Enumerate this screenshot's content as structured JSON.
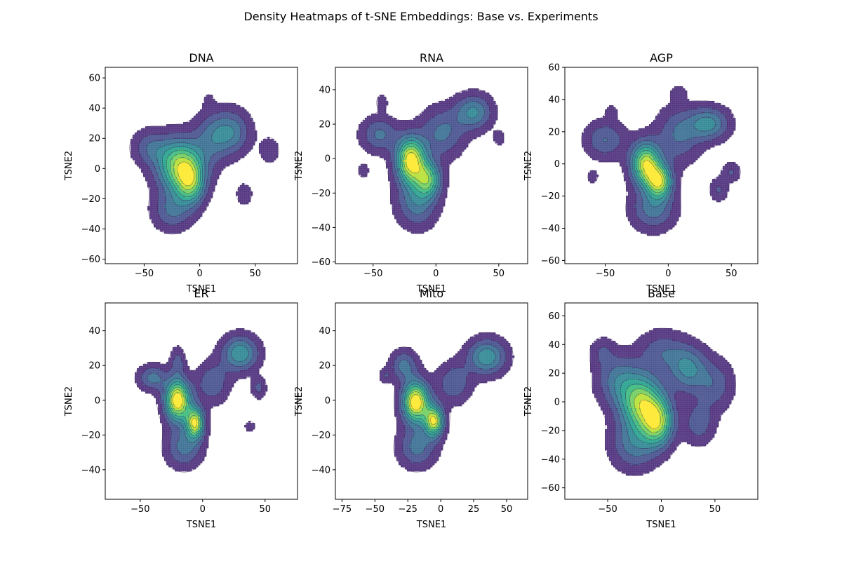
{
  "figure": {
    "title": "Density Heatmaps of t-SNE Embeddings: Base vs. Experiments"
  },
  "colors": {
    "levels": [
      "#482878",
      "#3f4a8a",
      "#31688e",
      "#26838f",
      "#1f9d8a",
      "#35b779",
      "#6cce59",
      "#b4de2c",
      "#fde725"
    ],
    "contour_line": "#2a1a3a",
    "axis": "#000000"
  },
  "chart_data": [
    {
      "type": "heatmap",
      "title": "DNA",
      "xlabel": "TSNE1",
      "ylabel": "TSNE2",
      "xlim": [
        -85,
        88
      ],
      "ylim": [
        -63,
        67
      ],
      "xticks": [
        -50,
        0,
        50
      ],
      "yticks": [
        -60,
        -40,
        -20,
        0,
        20,
        40,
        60
      ],
      "grid": false,
      "clusters": [
        {
          "x": -18,
          "y": 2,
          "sx": 14,
          "sy": 12,
          "w": 1.0
        },
        {
          "x": -8,
          "y": -10,
          "sx": 9,
          "sy": 10,
          "w": 0.7
        },
        {
          "x": 28,
          "y": 24,
          "sx": 12,
          "sy": 10,
          "w": 0.45
        },
        {
          "x": -45,
          "y": 14,
          "sx": 11,
          "sy": 8,
          "w": 0.3
        },
        {
          "x": -25,
          "y": -28,
          "sx": 12,
          "sy": 9,
          "w": 0.35
        },
        {
          "x": 40,
          "y": -17,
          "sx": 5,
          "sy": 5,
          "w": 0.2
        },
        {
          "x": 63,
          "y": 12,
          "sx": 6,
          "sy": 6,
          "w": 0.2
        },
        {
          "x": 10,
          "y": 20,
          "sx": 11,
          "sy": 12,
          "w": 0.3
        },
        {
          "x": 8,
          "y": 45,
          "sx": 3,
          "sy": 3,
          "w": 0.15
        }
      ]
    },
    {
      "type": "heatmap",
      "title": "RNA",
      "xlabel": "TSNE1",
      "ylabel": "TSNE2",
      "xlim": [
        -80,
        73
      ],
      "ylim": [
        -61,
        53
      ],
      "xticks": [
        -50,
        0,
        50
      ],
      "yticks": [
        -60,
        -40,
        -20,
        0,
        20,
        40
      ],
      "grid": false,
      "clusters": [
        {
          "x": -20,
          "y": -1,
          "sx": 8,
          "sy": 9,
          "w": 1.0
        },
        {
          "x": -6,
          "y": -12,
          "sx": 7,
          "sy": 7,
          "w": 0.6
        },
        {
          "x": 30,
          "y": 27,
          "sx": 10,
          "sy": 7,
          "w": 0.4
        },
        {
          "x": -45,
          "y": 14,
          "sx": 10,
          "sy": 7,
          "w": 0.3
        },
        {
          "x": -15,
          "y": -25,
          "sx": 11,
          "sy": 10,
          "w": 0.35
        },
        {
          "x": -43,
          "y": 33,
          "sx": 3,
          "sy": 3,
          "w": 0.15
        },
        {
          "x": -58,
          "y": -7,
          "sx": 3,
          "sy": 3,
          "w": 0.15
        },
        {
          "x": 5,
          "y": 15,
          "sx": 12,
          "sy": 10,
          "w": 0.3
        },
        {
          "x": 50,
          "y": 12,
          "sx": 3,
          "sy": 3,
          "w": 0.15
        }
      ]
    },
    {
      "type": "heatmap",
      "title": "AGP",
      "xlabel": "TSNE1",
      "ylabel": "TSNE2",
      "xlim": [
        -82,
        71
      ],
      "ylim": [
        -62,
        60
      ],
      "xticks": [
        -50,
        0,
        50
      ],
      "yticks": [
        -60,
        -40,
        -20,
        0,
        20,
        40,
        60
      ],
      "grid": false,
      "clusters": [
        {
          "x": -18,
          "y": 0,
          "sx": 8,
          "sy": 9,
          "w": 0.95
        },
        {
          "x": -7,
          "y": -11,
          "sx": 7,
          "sy": 7,
          "w": 0.85
        },
        {
          "x": 32,
          "y": 25,
          "sx": 11,
          "sy": 7,
          "w": 0.45
        },
        {
          "x": -50,
          "y": 15,
          "sx": 11,
          "sy": 8,
          "w": 0.3
        },
        {
          "x": -12,
          "y": -28,
          "sx": 12,
          "sy": 9,
          "w": 0.35
        },
        {
          "x": -45,
          "y": 32,
          "sx": 3,
          "sy": 3,
          "w": 0.15
        },
        {
          "x": -60,
          "y": -8,
          "sx": 3,
          "sy": 3,
          "w": 0.15
        },
        {
          "x": 8,
          "y": 44,
          "sx": 4,
          "sy": 3,
          "w": 0.15
        },
        {
          "x": 40,
          "y": -16,
          "sx": 5,
          "sy": 5,
          "w": 0.2
        },
        {
          "x": 50,
          "y": -5,
          "sx": 5,
          "sy": 4,
          "w": 0.2
        },
        {
          "x": 8,
          "y": 18,
          "sx": 12,
          "sy": 12,
          "w": 0.3
        }
      ]
    },
    {
      "type": "heatmap",
      "title": "ER",
      "xlabel": "TSNE1",
      "ylabel": "TSNE2",
      "xlim": [
        -78,
        76
      ],
      "ylim": [
        -57,
        56
      ],
      "xticks": [
        -50,
        0,
        50
      ],
      "yticks": [
        -40,
        -20,
        0,
        20,
        40
      ],
      "grid": false,
      "clusters": [
        {
          "x": -20,
          "y": 0,
          "sx": 7,
          "sy": 8,
          "w": 1.0
        },
        {
          "x": -6,
          "y": -13,
          "sx": 5,
          "sy": 6,
          "w": 0.85
        },
        {
          "x": 30,
          "y": 27,
          "sx": 10,
          "sy": 7,
          "w": 0.45
        },
        {
          "x": -40,
          "y": 13,
          "sx": 8,
          "sy": 5,
          "w": 0.3
        },
        {
          "x": -15,
          "y": -27,
          "sx": 10,
          "sy": 8,
          "w": 0.3
        },
        {
          "x": 45,
          "y": 7,
          "sx": 4,
          "sy": 4,
          "w": 0.2
        },
        {
          "x": 38,
          "y": -15,
          "sx": 3,
          "sy": 2,
          "w": 0.15
        },
        {
          "x": -20,
          "y": 22,
          "sx": 4,
          "sy": 6,
          "w": 0.2
        },
        {
          "x": 8,
          "y": 10,
          "sx": 9,
          "sy": 8,
          "w": 0.25
        }
      ]
    },
    {
      "type": "heatmap",
      "title": "Mito",
      "xlabel": "TSNE1",
      "ylabel": "TSNE2",
      "xlim": [
        -80,
        66
      ],
      "ylim": [
        -57,
        56
      ],
      "xticks": [
        -75,
        -50,
        -25,
        0,
        25,
        50
      ],
      "yticks": [
        -40,
        -20,
        0,
        20,
        40
      ],
      "grid": false,
      "clusters": [
        {
          "x": -19,
          "y": -1,
          "sx": 7,
          "sy": 8,
          "w": 1.0
        },
        {
          "x": -5,
          "y": -12,
          "sx": 5,
          "sy": 6,
          "w": 0.85
        },
        {
          "x": 35,
          "y": 25,
          "sx": 10,
          "sy": 7,
          "w": 0.45
        },
        {
          "x": -28,
          "y": 20,
          "sx": 7,
          "sy": 6,
          "w": 0.3
        },
        {
          "x": -18,
          "y": -27,
          "sx": 10,
          "sy": 8,
          "w": 0.3
        },
        {
          "x": -42,
          "y": 14,
          "sx": 3,
          "sy": 3,
          "w": 0.15
        },
        {
          "x": 10,
          "y": 10,
          "sx": 9,
          "sy": 8,
          "w": 0.25
        }
      ]
    },
    {
      "type": "heatmap",
      "title": "Base",
      "xlabel": "TSNE1",
      "ylabel": "TSNE2",
      "xlim": [
        -90,
        90
      ],
      "ylim": [
        -68,
        69
      ],
      "xticks": [
        -50,
        0,
        50
      ],
      "yticks": [
        -60,
        -40,
        -20,
        0,
        20,
        40,
        60
      ],
      "grid": false,
      "clusters": [
        {
          "x": -18,
          "y": -1,
          "sx": 14,
          "sy": 13,
          "w": 1.0
        },
        {
          "x": -3,
          "y": -15,
          "sx": 10,
          "sy": 11,
          "w": 0.85
        },
        {
          "x": 25,
          "y": 23,
          "sx": 12,
          "sy": 11,
          "w": 0.5
        },
        {
          "x": -40,
          "y": 15,
          "sx": 14,
          "sy": 12,
          "w": 0.4
        },
        {
          "x": -25,
          "y": -30,
          "sx": 15,
          "sy": 12,
          "w": 0.4
        },
        {
          "x": 35,
          "y": -15,
          "sx": 10,
          "sy": 10,
          "w": 0.3
        },
        {
          "x": 50,
          "y": 12,
          "sx": 12,
          "sy": 12,
          "w": 0.3
        },
        {
          "x": 0,
          "y": 35,
          "sx": 15,
          "sy": 10,
          "w": 0.3
        },
        {
          "x": -55,
          "y": 35,
          "sx": 8,
          "sy": 7,
          "w": 0.2
        }
      ]
    }
  ]
}
